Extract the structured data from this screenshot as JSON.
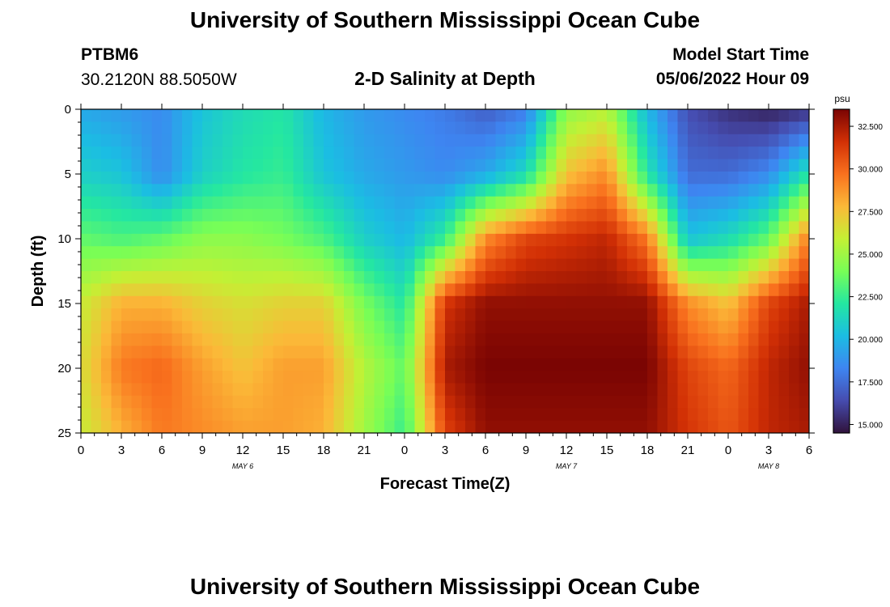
{
  "header": {
    "title": "University of Southern Mississippi Ocean Cube",
    "station_id": "PTBM6",
    "coordinates": "30.2120N  88.5050W",
    "plot_title": "2-D Salinity at Depth",
    "model_start_label": "Model Start Time",
    "model_start_value": "05/06/2022 Hour 09"
  },
  "footer": {
    "title": "University of Southern Mississippi Ocean Cube"
  },
  "chart_data": {
    "type": "heatmap",
    "title": "2-D Salinity at Depth",
    "xlabel": "Forecast Time(Z)",
    "ylabel": "Depth (ft)",
    "x_ticks": [
      "0",
      "3",
      "6",
      "9",
      "12",
      "15",
      "18",
      "21",
      "0",
      "3",
      "6",
      "9",
      "12",
      "15",
      "18",
      "21",
      "0",
      "3",
      "6"
    ],
    "x_range_hours": [
      0,
      54
    ],
    "date_labels": [
      {
        "text": "MAY 6",
        "hour": 12
      },
      {
        "text": "MAY 7",
        "hour": 36
      },
      {
        "text": "MAY 8",
        "hour": 51
      }
    ],
    "y_ticks": [
      0,
      5,
      10,
      15,
      20,
      25
    ],
    "ylim": [
      0,
      25
    ],
    "y_inverted": true,
    "colorbar": {
      "unit": "psu",
      "range": [
        14.5,
        33.5
      ],
      "ticks": [
        "15.000",
        "17.500",
        "20.000",
        "22.500",
        "25.000",
        "27.500",
        "30.000",
        "32.500"
      ],
      "tick_values": [
        15,
        17.5,
        20,
        22.5,
        25,
        27.5,
        30,
        32.5
      ]
    },
    "salinity_profiles": {
      "hours": [
        0,
        3,
        6,
        9,
        12,
        15,
        18,
        21,
        24,
        27,
        30,
        33,
        36,
        39,
        42,
        45,
        48,
        51,
        54
      ],
      "depths_ft": [
        0,
        5,
        10,
        15,
        20,
        25
      ],
      "values_psu": [
        [
          19.5,
          21.0,
          23.5,
          26.0,
          26.5,
          26.0
        ],
        [
          19.0,
          20.5,
          23.0,
          28.0,
          29.5,
          28.0
        ],
        [
          18.5,
          18.5,
          23.5,
          28.0,
          30.0,
          29.5
        ],
        [
          20.5,
          21.0,
          24.5,
          27.0,
          28.5,
          29.0
        ],
        [
          21.5,
          22.0,
          24.5,
          26.5,
          27.5,
          28.5
        ],
        [
          22.0,
          22.5,
          24.0,
          27.0,
          28.5,
          28.5
        ],
        [
          20.0,
          20.5,
          23.0,
          27.0,
          28.5,
          28.0
        ],
        [
          19.0,
          19.5,
          21.0,
          24.0,
          25.5,
          25.0
        ],
        [
          18.5,
          19.0,
          20.0,
          22.0,
          23.5,
          22.5
        ],
        [
          18.0,
          18.5,
          22.5,
          31.5,
          32.5,
          31.0
        ],
        [
          17.0,
          19.5,
          29.0,
          33.0,
          33.5,
          33.0
        ],
        [
          18.0,
          21.5,
          31.0,
          33.0,
          33.5,
          33.0
        ],
        [
          24.5,
          27.5,
          31.5,
          33.0,
          33.5,
          33.0
        ],
        [
          25.5,
          29.0,
          32.0,
          33.0,
          33.5,
          33.0
        ],
        [
          20.0,
          22.0,
          29.5,
          33.0,
          33.5,
          33.0
        ],
        [
          16.5,
          17.5,
          20.5,
          29.0,
          31.0,
          31.5
        ],
        [
          15.5,
          17.5,
          21.5,
          27.5,
          30.0,
          30.5
        ],
        [
          15.0,
          18.5,
          23.5,
          31.0,
          32.0,
          32.0
        ],
        [
          15.5,
          22.0,
          29.5,
          32.5,
          33.0,
          32.5
        ]
      ]
    }
  }
}
